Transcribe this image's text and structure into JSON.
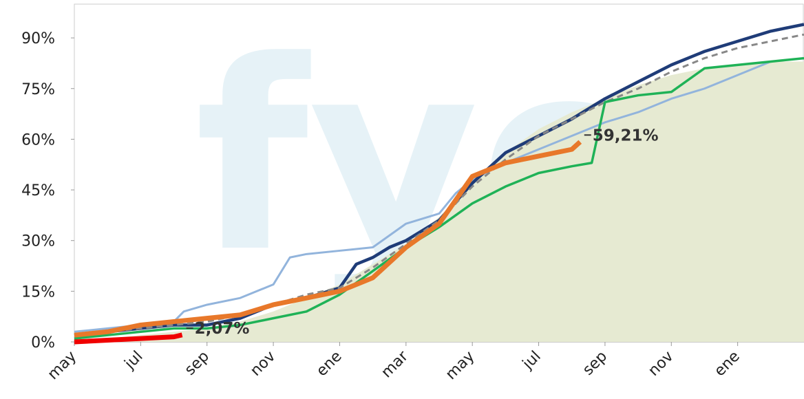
{
  "chart_data": {
    "type": "line",
    "watermark": "fyo",
    "xlim": [
      0,
      22
    ],
    "ylim": [
      0,
      100
    ],
    "xticks": [
      {
        "value": 0,
        "label": "may"
      },
      {
        "value": 2,
        "label": "jul"
      },
      {
        "value": 4,
        "label": "sep"
      },
      {
        "value": 6,
        "label": "nov"
      },
      {
        "value": 8,
        "label": "ene"
      },
      {
        "value": 10,
        "label": "mar"
      },
      {
        "value": 12,
        "label": "may"
      },
      {
        "value": 14,
        "label": "jul"
      },
      {
        "value": 16,
        "label": "sep"
      },
      {
        "value": 18,
        "label": "nov"
      },
      {
        "value": 20,
        "label": "ene"
      }
    ],
    "yticks": [
      {
        "value": 0,
        "label": "0%"
      },
      {
        "value": 15,
        "label": "15%"
      },
      {
        "value": 30,
        "label": "30%"
      },
      {
        "value": 45,
        "label": "45%"
      },
      {
        "value": 60,
        "label": "60%"
      },
      {
        "value": 75,
        "label": "75%"
      },
      {
        "value": 90,
        "label": "90%"
      }
    ],
    "series": [
      {
        "color": "#e6ead2",
        "fill": true,
        "x": [
          0,
          1,
          2,
          3,
          4,
          5,
          6,
          7,
          8,
          9,
          10,
          11,
          12,
          13,
          14,
          15,
          16,
          17,
          18,
          19,
          20,
          21,
          22
        ],
        "values": [
          0,
          1,
          2,
          3,
          4,
          6,
          9,
          13,
          17,
          23,
          29,
          37,
          47,
          56,
          63,
          68,
          72,
          76,
          79,
          81,
          82,
          83,
          83
        ]
      },
      {
        "color": "#92b4dc",
        "width": 3,
        "x": [
          0,
          1,
          2,
          3,
          3.3,
          4,
          5,
          6,
          6.5,
          7,
          8,
          9,
          10,
          11,
          11.5,
          12,
          13,
          14,
          15,
          16,
          17,
          18,
          19,
          20,
          21
        ],
        "values": [
          3,
          4,
          5,
          6,
          9,
          11,
          13,
          17,
          25,
          26,
          27,
          28,
          35,
          38,
          44,
          48,
          53,
          57,
          61,
          65,
          68,
          72,
          75,
          79,
          83
        ]
      },
      {
        "color": "#1f3c78",
        "width": 4.5,
        "x": [
          0,
          1,
          2,
          3,
          4,
          5,
          6,
          7,
          8,
          8.5,
          9,
          9.5,
          10,
          11,
          12,
          13,
          14,
          15,
          16,
          17,
          18,
          19,
          20,
          21,
          22
        ],
        "values": [
          2,
          3,
          4,
          5,
          5,
          7,
          11,
          13,
          16,
          23,
          25,
          28,
          30,
          36,
          47,
          56,
          61,
          66,
          72,
          77,
          82,
          86,
          89,
          92,
          94
        ]
      },
      {
        "color": "#888888",
        "width": 3,
        "dash": true,
        "x": [
          0,
          1,
          2,
          3,
          4,
          5,
          6,
          7,
          8,
          9,
          10,
          11,
          12,
          13,
          14,
          15,
          16,
          17,
          18,
          19,
          20,
          21,
          22
        ],
        "values": [
          2,
          3,
          4,
          5,
          6,
          8,
          11,
          14,
          16,
          22,
          29,
          36,
          46,
          54,
          61,
          66,
          71,
          75,
          80,
          84,
          87,
          89,
          91
        ]
      },
      {
        "color": "#1fb257",
        "width": 3.5,
        "x": [
          0,
          1,
          2,
          3,
          4,
          5,
          6,
          7,
          8,
          9,
          10,
          11,
          12,
          13,
          14,
          15,
          15.6,
          16,
          17,
          18,
          19,
          20,
          21,
          22
        ],
        "values": [
          1,
          2,
          3,
          4,
          4,
          5,
          7,
          9,
          14,
          21,
          28,
          34,
          41,
          46,
          50,
          52,
          53,
          71,
          73,
          74,
          81,
          82,
          83,
          84
        ]
      },
      {
        "color": "#e8782a",
        "width": 7,
        "x": [
          0,
          1,
          2,
          3,
          4,
          5,
          6,
          7,
          8,
          9,
          10,
          11,
          12,
          13,
          14,
          15,
          15.25
        ],
        "values": [
          2,
          3,
          5,
          6,
          7,
          8,
          11,
          13,
          15,
          19,
          28,
          35,
          49,
          53,
          55,
          57,
          59.21
        ],
        "value_labels": [
          null,
          null,
          null,
          null,
          null,
          null,
          null,
          null,
          null,
          null,
          null,
          null,
          null,
          null,
          null,
          null,
          "59,21%"
        ]
      },
      {
        "color": "#f00000",
        "width": 7,
        "x": [
          0,
          1,
          2,
          3,
          3.25
        ],
        "values": [
          0,
          0.5,
          1,
          1.5,
          2.07
        ],
        "value_labels": [
          null,
          null,
          null,
          null,
          "2,07%"
        ]
      }
    ]
  }
}
